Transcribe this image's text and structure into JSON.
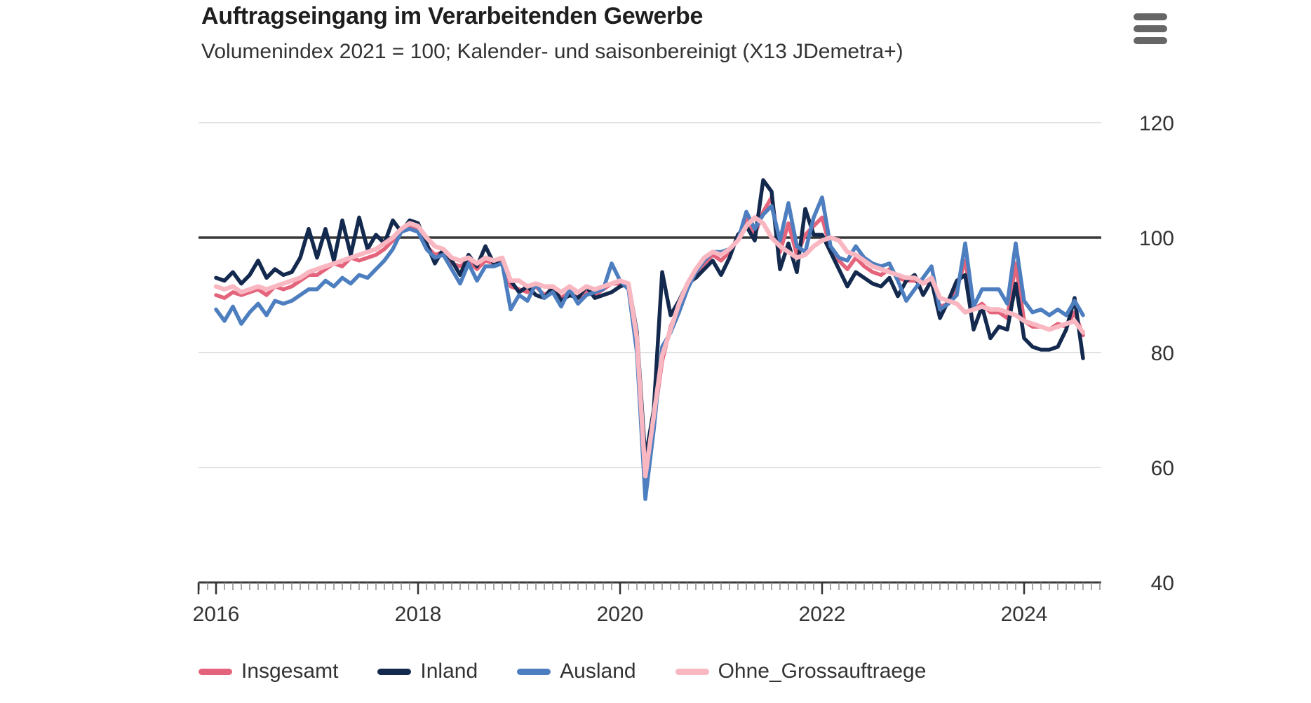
{
  "header": {
    "title": "Auftragseingang im Verarbeitenden Gewerbe",
    "subtitle": "Volumenindex 2021 = 100; Kalender- und saisonbereinigt (X13 JDemetra+)"
  },
  "menu": {
    "icon": "hamburger-icon"
  },
  "colors": {
    "insgesamt": "#e4647b",
    "inland": "#14294e",
    "ausland": "#4d7ebf",
    "ohne_grossauftraege": "#f9b7c1",
    "gridline": "#d9d9d9",
    "axis": "#383838",
    "text": "#333333"
  },
  "chart_data": {
    "type": "line",
    "title": "Auftragseingang im Verarbeitenden Gewerbe",
    "subtitle": "Volumenindex 2021 = 100; Kalender- und saisonbereinigt (X13 JDemetra+)",
    "ylim": [
      40,
      120
    ],
    "yticks": [
      40,
      60,
      80,
      100,
      120
    ],
    "baseline": 100,
    "grid": "horizontal",
    "legend_position": "bottom",
    "xticks": [
      {
        "index": 0,
        "label": "2016"
      },
      {
        "index": 24,
        "label": "2018"
      },
      {
        "index": 48,
        "label": "2020"
      },
      {
        "index": 72,
        "label": "2022"
      },
      {
        "index": 96,
        "label": "2024"
      }
    ],
    "x": [
      "2016-01",
      "2016-02",
      "2016-03",
      "2016-04",
      "2016-05",
      "2016-06",
      "2016-07",
      "2016-08",
      "2016-09",
      "2016-10",
      "2016-11",
      "2016-12",
      "2017-01",
      "2017-02",
      "2017-03",
      "2017-04",
      "2017-05",
      "2017-06",
      "2017-07",
      "2017-08",
      "2017-09",
      "2017-10",
      "2017-11",
      "2017-12",
      "2018-01",
      "2018-02",
      "2018-03",
      "2018-04",
      "2018-05",
      "2018-06",
      "2018-07",
      "2018-08",
      "2018-09",
      "2018-10",
      "2018-11",
      "2018-12",
      "2019-01",
      "2019-02",
      "2019-03",
      "2019-04",
      "2019-05",
      "2019-06",
      "2019-07",
      "2019-08",
      "2019-09",
      "2019-10",
      "2019-11",
      "2019-12",
      "2020-01",
      "2020-02",
      "2020-03",
      "2020-04",
      "2020-05",
      "2020-06",
      "2020-07",
      "2020-08",
      "2020-09",
      "2020-10",
      "2020-11",
      "2020-12",
      "2021-01",
      "2021-02",
      "2021-03",
      "2021-04",
      "2021-05",
      "2021-06",
      "2021-07",
      "2021-08",
      "2021-09",
      "2021-10",
      "2021-11",
      "2021-12",
      "2022-01",
      "2022-02",
      "2022-03",
      "2022-04",
      "2022-05",
      "2022-06",
      "2022-07",
      "2022-08",
      "2022-09",
      "2022-10",
      "2022-11",
      "2022-12",
      "2023-01",
      "2023-02",
      "2023-03",
      "2023-04",
      "2023-05",
      "2023-06",
      "2023-07",
      "2023-08",
      "2023-09",
      "2023-10",
      "2023-11",
      "2023-12",
      "2024-01",
      "2024-02",
      "2024-03",
      "2024-04",
      "2024-05",
      "2024-06",
      "2024-07",
      "2024-08"
    ],
    "series": [
      {
        "name": "Insgesamt",
        "color": "#e4647b",
        "values": [
          90.0,
          89.5,
          90.5,
          90.0,
          90.5,
          91.0,
          90.0,
          91.5,
          91.0,
          91.5,
          92.5,
          93.5,
          93.5,
          94.5,
          95.5,
          95.0,
          96.5,
          96.0,
          96.5,
          97.0,
          98.0,
          99.5,
          101.5,
          102.0,
          101.5,
          98.5,
          97.0,
          97.5,
          95.5,
          95.0,
          96.0,
          94.5,
          96.0,
          95.5,
          96.0,
          91.5,
          91.0,
          90.5,
          91.5,
          90.0,
          91.0,
          89.5,
          90.5,
          89.5,
          90.5,
          90.0,
          91.0,
          92.0,
          92.0,
          91.5,
          81.5,
          58.0,
          68.0,
          78.5,
          84.5,
          88.0,
          91.5,
          93.5,
          95.5,
          97.0,
          96.0,
          97.5,
          100.0,
          103.5,
          100.5,
          104.5,
          107.0,
          97.5,
          102.5,
          97.0,
          100.5,
          102.0,
          103.5,
          98.0,
          96.0,
          94.5,
          96.5,
          95.0,
          94.0,
          93.5,
          94.5,
          93.0,
          92.5,
          92.5,
          92.0,
          92.5,
          88.0,
          88.5,
          91.0,
          96.0,
          87.5,
          88.5,
          87.0,
          87.0,
          86.0,
          95.5,
          85.5,
          84.5,
          84.5,
          84.0,
          85.0,
          84.5,
          87.0,
          83.0
        ]
      },
      {
        "name": "Inland",
        "color": "#14294e",
        "values": [
          93.0,
          92.5,
          94.0,
          92.0,
          93.5,
          96.0,
          93.0,
          94.5,
          93.5,
          94.0,
          96.5,
          101.5,
          96.5,
          101.5,
          96.0,
          103.0,
          97.0,
          103.5,
          98.0,
          100.5,
          99.0,
          103.0,
          101.0,
          103.0,
          102.5,
          99.0,
          95.5,
          98.0,
          96.0,
          93.5,
          97.0,
          95.0,
          98.5,
          95.5,
          96.5,
          92.5,
          90.5,
          91.5,
          90.0,
          89.5,
          91.5,
          89.0,
          90.0,
          89.5,
          91.5,
          89.5,
          90.0,
          90.5,
          91.5,
          92.0,
          83.5,
          61.5,
          70.0,
          94.0,
          86.5,
          89.0,
          92.0,
          93.0,
          94.5,
          96.0,
          93.5,
          96.5,
          100.5,
          102.0,
          99.5,
          110.0,
          108.0,
          94.5,
          99.0,
          94.0,
          105.0,
          100.5,
          100.5,
          97.5,
          94.5,
          91.5,
          94.0,
          93.0,
          92.0,
          91.5,
          93.0,
          89.8,
          92.5,
          93.5,
          90.0,
          92.5,
          86.0,
          89.0,
          92.5,
          93.5,
          84.0,
          88.0,
          82.5,
          84.5,
          84.0,
          92.0,
          82.5,
          81.0,
          80.5,
          80.5,
          81.0,
          84.0,
          89.5,
          79.0
        ]
      },
      {
        "name": "Ausland",
        "color": "#4d7ebf",
        "values": [
          87.5,
          85.5,
          88.0,
          85.0,
          87.0,
          88.5,
          86.5,
          89.0,
          88.5,
          89.0,
          90.0,
          91.0,
          91.0,
          92.5,
          91.5,
          93.0,
          92.0,
          93.5,
          93.0,
          94.5,
          96.0,
          98.0,
          101.0,
          101.5,
          101.0,
          98.0,
          96.5,
          97.0,
          94.5,
          92.0,
          95.5,
          92.5,
          95.0,
          95.0,
          95.5,
          87.5,
          90.0,
          89.0,
          92.0,
          89.5,
          90.5,
          88.0,
          91.0,
          88.5,
          90.0,
          90.5,
          91.0,
          95.5,
          92.5,
          91.0,
          80.0,
          54.5,
          66.5,
          81.0,
          83.5,
          87.0,
          91.0,
          94.0,
          96.0,
          97.5,
          97.5,
          98.0,
          99.5,
          104.5,
          101.5,
          104.0,
          105.5,
          99.5,
          106.0,
          98.5,
          97.5,
          103.5,
          107.0,
          98.5,
          96.5,
          96.0,
          98.5,
          96.5,
          95.5,
          95.0,
          95.5,
          92.5,
          89.0,
          91.0,
          93.0,
          95.0,
          87.5,
          88.5,
          90.0,
          99.0,
          88.0,
          91.0,
          91.0,
          91.0,
          88.5,
          99.0,
          89.0,
          87.0,
          87.5,
          86.5,
          87.5,
          86.5,
          89.0,
          86.5
        ]
      },
      {
        "name": "Ohne_Grossauftraege",
        "color": "#f9b7c1",
        "values": [
          91.5,
          91.0,
          91.5,
          90.5,
          91.0,
          91.5,
          91.0,
          91.5,
          92.0,
          92.5,
          93.0,
          94.0,
          94.5,
          95.0,
          95.5,
          96.0,
          96.5,
          97.0,
          97.5,
          98.0,
          99.0,
          100.0,
          101.5,
          102.5,
          102.0,
          100.0,
          98.5,
          98.0,
          96.5,
          96.0,
          96.5,
          95.5,
          96.5,
          96.0,
          96.5,
          92.5,
          92.5,
          91.5,
          92.0,
          91.5,
          91.5,
          90.5,
          91.5,
          90.5,
          91.5,
          91.0,
          91.5,
          92.0,
          92.5,
          92.0,
          82.5,
          58.5,
          69.0,
          79.5,
          84.0,
          88.5,
          92.0,
          94.5,
          96.5,
          97.5,
          97.0,
          98.0,
          99.5,
          102.0,
          103.5,
          102.5,
          100.0,
          98.5,
          97.5,
          96.5,
          97.0,
          98.5,
          99.5,
          100.0,
          99.5,
          97.5,
          97.0,
          96.0,
          95.0,
          94.5,
          94.0,
          93.5,
          93.0,
          93.0,
          92.0,
          93.0,
          89.5,
          89.0,
          88.5,
          87.0,
          87.5,
          88.0,
          87.5,
          87.5,
          87.0,
          86.5,
          85.5,
          85.0,
          84.5,
          84.0,
          84.5,
          85.0,
          85.5,
          83.5
        ]
      }
    ]
  }
}
